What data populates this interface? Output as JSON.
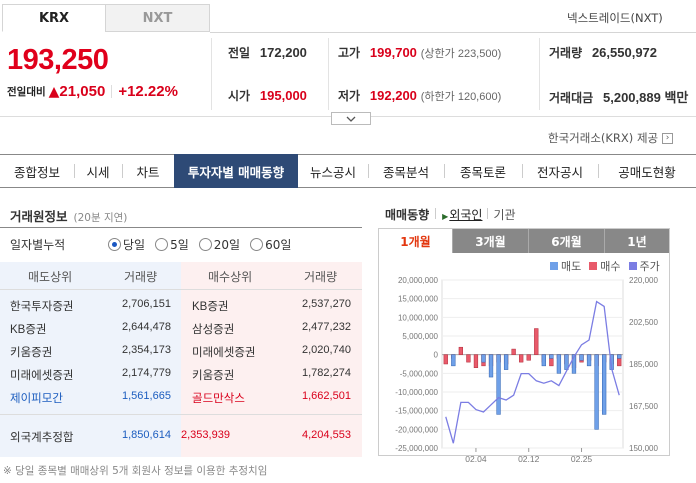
{
  "market_tabs": [
    "KRX",
    "NXT"
  ],
  "nextrade_link": "넥스트레이드(NXT)",
  "price": {
    "current": "193,250",
    "change_label": "전일대비",
    "change_arrow": "▲",
    "change": "21,050",
    "change_pct": "+12.22%"
  },
  "stats": {
    "prev_close_label": "전일",
    "prev_close": "172,200",
    "high_label": "고가",
    "high": "199,700",
    "upper_limit": "(상한가 223,500)",
    "volume_label": "거래량",
    "volume": "26,550,972",
    "open_label": "시가",
    "open": "195,000",
    "low_label": "저가",
    "low": "192,200",
    "lower_limit": "(하한가 120,600)",
    "amount_label": "거래대금",
    "amount": "5,200,889 백만"
  },
  "source": "한국거래소(KRX) 제공",
  "nav_tabs": [
    "종합정보",
    "시세",
    "차트",
    "투자자별 매매동향",
    "뉴스공시",
    "종목분석",
    "종목토론",
    "전자공시",
    "공매도현황"
  ],
  "broker": {
    "title": "거래원정보",
    "delay": "(20분 지연)",
    "period_label": "일자별누적",
    "periods": [
      "당일",
      "5일",
      "20일",
      "60일"
    ],
    "headers": [
      "매도상위",
      "거래량",
      "매수상위",
      "거래량"
    ],
    "rows": [
      {
        "sell": "한국투자증권",
        "sell_vol": "2,706,151",
        "buy": "KB증권",
        "buy_vol": "2,537,270"
      },
      {
        "sell": "KB증권",
        "sell_vol": "2,644,478",
        "buy": "삼성증권",
        "buy_vol": "2,477,232"
      },
      {
        "sell": "키움증권",
        "sell_vol": "2,354,173",
        "buy": "미래에셋증권",
        "buy_vol": "2,020,740"
      },
      {
        "sell": "미래에셋증권",
        "sell_vol": "2,174,779",
        "buy": "키움증권",
        "buy_vol": "1,782,274"
      },
      {
        "sell": "제이피모간",
        "sell_vol": "1,561,665",
        "buy": "골드만삭스",
        "buy_vol": "1,662,501"
      }
    ],
    "foreign_label": "외국계추정합",
    "foreign_sell": "1,850,614",
    "foreign_net": "2,353,939",
    "foreign_buy": "4,204,553",
    "note": "※ 당일 종목별 매매상위 5개 회원사 정보를 이용한 추정치임"
  },
  "trend": {
    "title": "매매동향",
    "investor_tabs": [
      "외국인",
      "기관"
    ],
    "period_tabs": [
      "1개월",
      "3개월",
      "6개월",
      "1년"
    ],
    "legend": [
      "매도",
      "매수",
      "주가"
    ]
  },
  "colors": {
    "up": "#d9001b",
    "down": "#1c5dbf",
    "nav_active": "#2e4a76",
    "sell_bg": "#eef3fb",
    "buy_bg": "#fdf0f0"
  },
  "chart_data": {
    "type": "bar",
    "x_ticks": [
      "02.04",
      "02.12",
      "02.25"
    ],
    "left_axis": {
      "min": -25000000,
      "max": 20000000,
      "ticks": [
        "20,000,000",
        "15,000,000",
        "10,000,000",
        "5,000,000",
        "0",
        "-5,000,000",
        "-10,000,000",
        "-15,000,000",
        "-20,000,000",
        "-25,000,000"
      ]
    },
    "right_axis": {
      "min": 150000,
      "max": 220000,
      "ticks": [
        "220,000",
        "202,500",
        "185,000",
        "167,500",
        "150,000"
      ]
    },
    "series": [
      {
        "name": "매수",
        "color": "#e85a6a",
        "values": [
          -2500000,
          -1000000,
          2000000,
          -2000000,
          -3500000,
          -3000000,
          -3000000,
          -2000000,
          -2500000,
          1500000,
          -2000000,
          -1500000,
          7000000,
          -2000000,
          -3000000,
          -1000000,
          -2500000,
          -3500000,
          -2000000,
          -1500000,
          -3000000,
          -2000000,
          -2500000,
          -3000000
        ]
      },
      {
        "name": "매도",
        "color": "#6fa0e8",
        "values": [
          0,
          -3000000,
          0,
          0,
          0,
          -2000000,
          -6000000,
          -16000000,
          -4000000,
          0,
          0,
          0,
          0,
          -3000000,
          -1000000,
          -5000000,
          -4000000,
          -5000000,
          -1500000,
          -3000000,
          -20000000,
          -16000000,
          -4000000,
          -1000000
        ]
      },
      {
        "name": "주가",
        "color": "#7b7de3",
        "values": [
          163000,
          152000,
          169000,
          169000,
          166000,
          165000,
          168000,
          171000,
          170000,
          172000,
          181000,
          181000,
          178000,
          177000,
          178000,
          176000,
          182000,
          188000,
          193000,
          195000,
          211000,
          209000,
          183000,
          172000
        ]
      }
    ]
  }
}
